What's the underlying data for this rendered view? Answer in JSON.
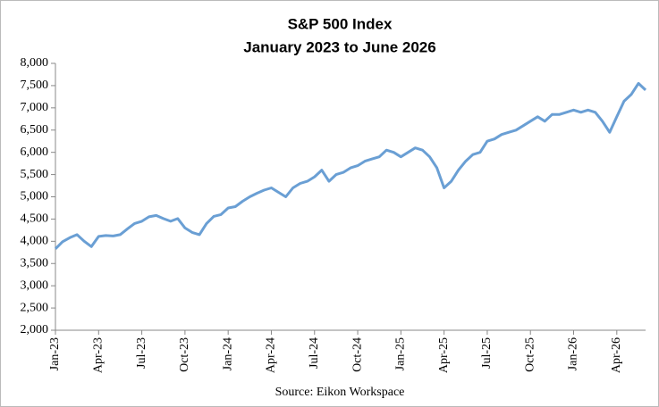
{
  "chart_data": {
    "type": "line",
    "title": "S&P 500 Index",
    "subtitle": "January 2023 to June 2026",
    "source": "Source: Eikon Workspace",
    "categories": [
      "Jan-23",
      null,
      null,
      null,
      null,
      null,
      "Apr-23",
      null,
      null,
      null,
      null,
      null,
      "Jul-23",
      null,
      null,
      null,
      null,
      null,
      "Oct-23",
      null,
      null,
      null,
      null,
      null,
      "Jan-24",
      null,
      null,
      null,
      null,
      null,
      "Apr-24",
      null,
      null,
      null,
      null,
      null,
      "Jul-24",
      null,
      null,
      null,
      null,
      null,
      "Oct-24",
      null,
      null,
      null,
      null,
      null,
      "Jan-25",
      null,
      null,
      null,
      null,
      null,
      "Apr-25",
      null,
      null,
      null,
      null,
      null,
      "Jul-25",
      null,
      null,
      null,
      null,
      null,
      "Oct-25",
      null,
      null,
      null,
      null,
      null,
      "Jan-26",
      null,
      null,
      null,
      null,
      null,
      "Apr-26",
      null,
      null,
      null,
      null
    ],
    "series": [
      {
        "name": "S&P 500",
        "color": "#6a9fd4",
        "values": [
          3830,
          3990,
          4080,
          4150,
          4000,
          3880,
          4110,
          4130,
          4120,
          4150,
          4280,
          4400,
          4450,
          4550,
          4580,
          4510,
          4450,
          4510,
          4300,
          4200,
          4150,
          4400,
          4560,
          4600,
          4750,
          4780,
          4900,
          5000,
          5080,
          5150,
          5200,
          5100,
          5000,
          5200,
          5300,
          5350,
          5450,
          5600,
          5350,
          5500,
          5550,
          5650,
          5700,
          5800,
          5850,
          5900,
          6050,
          6000,
          5900,
          6000,
          6100,
          6050,
          5900,
          5650,
          5200,
          5350,
          5600,
          5800,
          5950,
          6000,
          6250,
          6300,
          6400,
          6450,
          6500,
          6600,
          6700,
          6800,
          6700,
          6850,
          6850,
          6900,
          6950,
          6900,
          6950,
          6900,
          6700,
          6450,
          6800,
          7150,
          7300,
          7550,
          7400
        ]
      }
    ],
    "ylim": [
      2000,
      8000
    ],
    "yticks": [
      {
        "value": 2000,
        "label": "2,000"
      },
      {
        "value": 2500,
        "label": "2,500"
      },
      {
        "value": 3000,
        "label": "3,000"
      },
      {
        "value": 3500,
        "label": "3,500"
      },
      {
        "value": 4000,
        "label": "4,000"
      },
      {
        "value": 4500,
        "label": "4,500"
      },
      {
        "value": 5000,
        "label": "5,000"
      },
      {
        "value": 5500,
        "label": "5,500"
      },
      {
        "value": 6000,
        "label": "6,000"
      },
      {
        "value": 6500,
        "label": "6,500"
      },
      {
        "value": 7000,
        "label": "7,000"
      },
      {
        "value": 7500,
        "label": "7,500"
      },
      {
        "value": 8000,
        "label": "8,000"
      }
    ],
    "grid": false
  }
}
